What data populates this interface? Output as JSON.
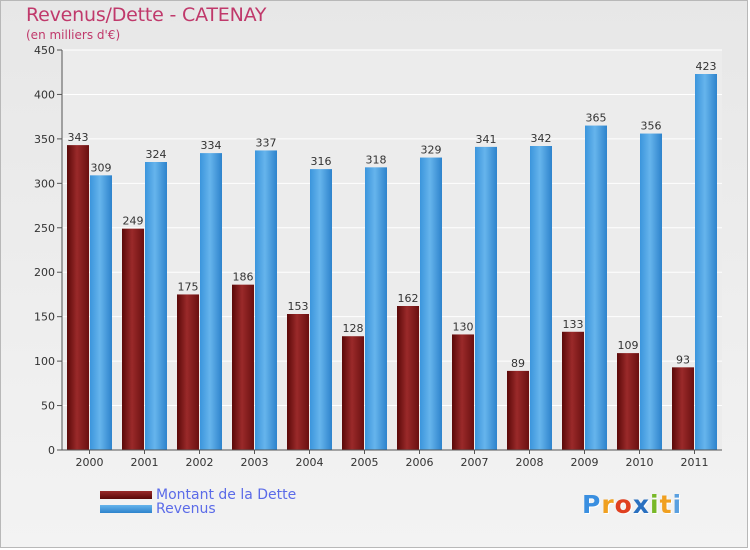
{
  "header": {
    "title": "Revenus/Dette - CATENAY",
    "subtitle": "(en milliers d'€)"
  },
  "legend": {
    "items": [
      {
        "label": "Montant de la Dette",
        "color": "#7a1616"
      },
      {
        "label": "Revenus",
        "color": "#4aa3e3"
      }
    ]
  },
  "logo": {
    "letters": [
      {
        "ch": "P",
        "color": "#3a8fe0"
      },
      {
        "ch": "r",
        "color": "#f0a020"
      },
      {
        "ch": "o",
        "color": "#e04020"
      },
      {
        "ch": "x",
        "color": "#2a70c0"
      },
      {
        "ch": "i",
        "color": "#78b828"
      },
      {
        "ch": "t",
        "color": "#f0a020"
      },
      {
        "ch": "i",
        "color": "#5aa0e0"
      }
    ]
  },
  "chart_data": {
    "type": "bar",
    "categories": [
      "2000",
      "2001",
      "2002",
      "2003",
      "2004",
      "2005",
      "2006",
      "2007",
      "2008",
      "2009",
      "2010",
      "2011"
    ],
    "series": [
      {
        "name": "Montant de la Dette",
        "values": [
          343,
          249,
          175,
          186,
          153,
          128,
          162,
          130,
          89,
          133,
          109,
          93
        ],
        "color": "#7a1616"
      },
      {
        "name": "Revenus",
        "values": [
          309,
          324,
          334,
          337,
          316,
          318,
          329,
          341,
          342,
          365,
          356,
          423
        ],
        "color": "#4aa3e3"
      }
    ],
    "ylim": [
      0,
      450
    ],
    "yticks": [
      0,
      50,
      100,
      150,
      200,
      250,
      300,
      350,
      400,
      450
    ],
    "grid": true
  }
}
